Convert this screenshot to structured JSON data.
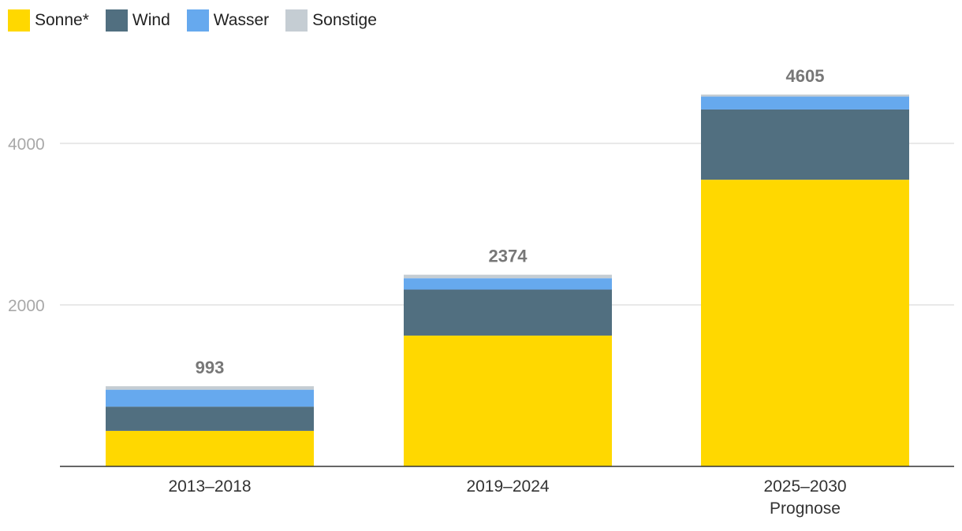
{
  "legend": [
    {
      "label": "Sonne*",
      "color": "#FFD800"
    },
    {
      "label": "Wind",
      "color": "#516F80"
    },
    {
      "label": "Wasser",
      "color": "#66A9EE"
    },
    {
      "label": "Sonstige",
      "color": "#C5CDD3"
    }
  ],
  "chart_data": {
    "type": "bar",
    "stacked": true,
    "title": "",
    "xlabel": "",
    "ylabel": "",
    "ylim": [
      0,
      4605
    ],
    "yticks": [
      2000,
      4000
    ],
    "grid": true,
    "legend_position": "top-left",
    "categories": [
      {
        "label": "2013–2018",
        "sublabel": ""
      },
      {
        "label": "2019–2024",
        "sublabel": ""
      },
      {
        "label": "2025–2030",
        "sublabel": "Prognose"
      }
    ],
    "series": [
      {
        "name": "Sonne*",
        "color": "#FFD800",
        "values": [
          440,
          1620,
          3550
        ]
      },
      {
        "name": "Wind",
        "color": "#516F80",
        "values": [
          300,
          570,
          870
        ]
      },
      {
        "name": "Wasser",
        "color": "#66A9EE",
        "values": [
          210,
          140,
          160
        ]
      },
      {
        "name": "Sonstige",
        "color": "#C5CDD3",
        "values": [
          43,
          44,
          25
        ]
      }
    ],
    "totals": [
      "993",
      "2374",
      "4605"
    ]
  }
}
